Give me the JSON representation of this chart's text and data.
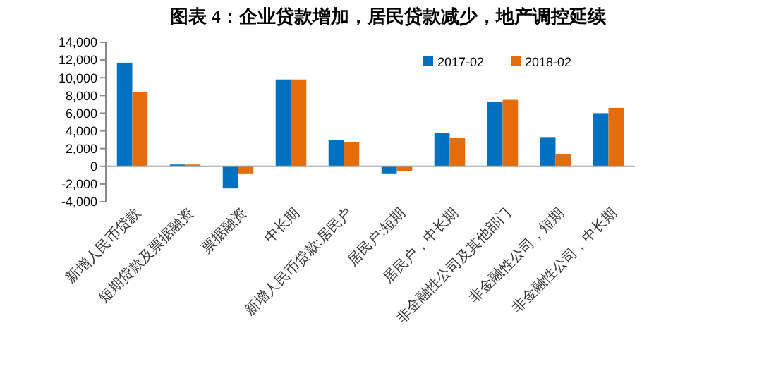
{
  "chart_data": {
    "type": "bar",
    "title": "图表 4：企业贷款增加，居民贷款减少，地产调控延续",
    "categories": [
      "新增人民币贷款",
      "短期贷款及票据融资",
      "票据融资",
      "中长期",
      "新增人民币贷款:居民户",
      "居民户:短期",
      "居民户，中长期",
      "非金融性公司及其他部门",
      "非金融性公司，短期",
      "非金融性公司，中长期"
    ],
    "series": [
      {
        "name": "2017-02",
        "color": "#0070c0",
        "values": [
          11700,
          200,
          -2500,
          9800,
          3000,
          -800,
          3800,
          7300,
          3300,
          6000
        ]
      },
      {
        "name": "2018-02",
        "color": "#e46c0a",
        "values": [
          8400,
          200,
          -800,
          9800,
          2700,
          -500,
          3200,
          7500,
          1400,
          6600
        ]
      }
    ],
    "ylim": [
      -4000,
      14000
    ],
    "yticks": [
      {
        "value": -4000,
        "label": "-4,000"
      },
      {
        "value": -2000,
        "label": "-2,000"
      },
      0,
      {
        "value": 2000,
        "label": "2,000"
      },
      {
        "value": 4000,
        "label": "4,000"
      },
      {
        "value": 6000,
        "label": "6,000"
      },
      {
        "value": 8000,
        "label": "8,000"
      },
      {
        "value": 10000,
        "label": "10,000"
      },
      {
        "value": 12000,
        "label": "12,000"
      },
      {
        "value": 14000,
        "label": "14,000"
      }
    ],
    "legend": "top right"
  }
}
